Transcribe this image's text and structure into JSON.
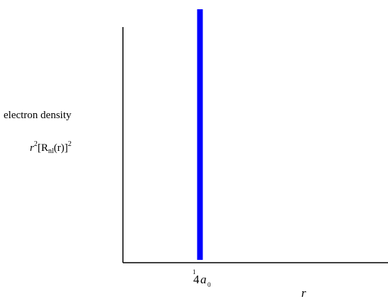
{
  "chart_data": {
    "type": "bar",
    "ylabel_line1": "electron density",
    "ylabel_line2_prefix": "r",
    "ylabel_line2_exp": "2",
    "ylabel_line2_body": "[R",
    "ylabel_line2_sub": "nl",
    "ylabel_line2_arg": "(r)]",
    "ylabel_line2_exp2": "2",
    "xlabel": "r",
    "x_tick": {
      "fraction_num": "1",
      "fraction_den": "4",
      "symbol": "a",
      "subscript": "0",
      "value": 0.25
    },
    "series": [
      {
        "x": 0.25,
        "y": 1.0,
        "color": "#0000ff"
      }
    ],
    "xlim": [
      0,
      0.86
    ],
    "ylim": [
      0,
      1.0
    ],
    "grid": false
  }
}
